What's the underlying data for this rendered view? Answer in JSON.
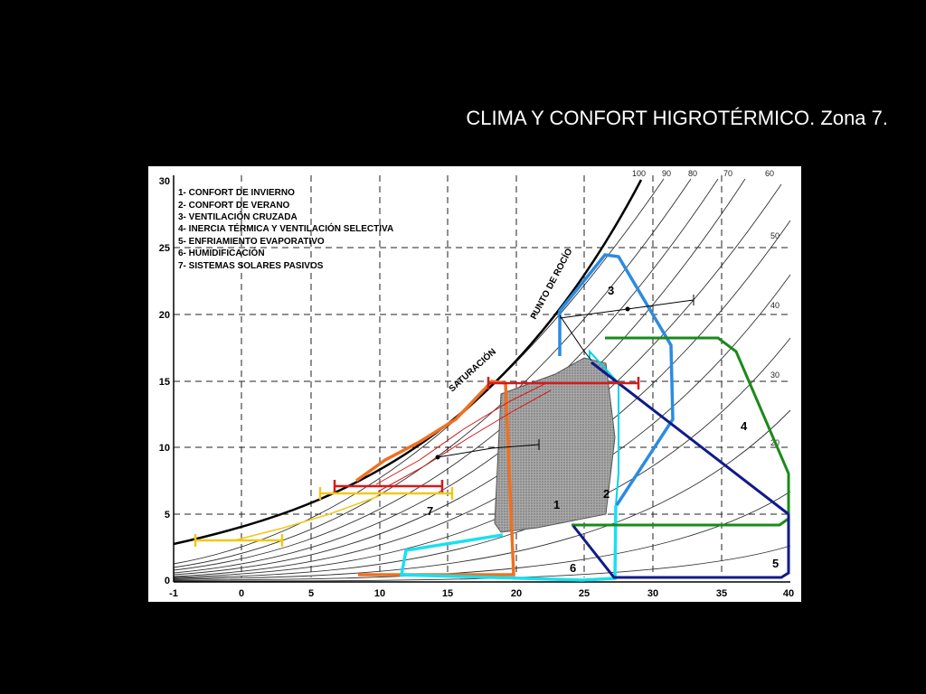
{
  "slide": {
    "title": "CLIMA Y CONFORT HIGROTÉRMICO. Zona 7."
  },
  "chart": {
    "legend": [
      "1- CONFORT DE INVIERNO",
      "2- CONFORT DE VERANO",
      "3- VENTILACIÓN CRUZADA",
      "4- INERCIA TÉRMICA Y VENTILACIÓN SELECTIVA",
      "5- ENFRIAMIENTO EVAPORATIVO",
      "6- HUMIDIFICACIÓN",
      "7- SISTEMAS SOLARES PASIVOS"
    ],
    "curve_labels": {
      "saturation": "SATURACIÓN",
      "dew_point": "PUNTO DE ROCÍO"
    },
    "x_ticks": [
      "-1",
      "0",
      "5",
      "10",
      "15",
      "20",
      "25",
      "30",
      "35",
      "40"
    ],
    "y_ticks": [
      "0",
      "5",
      "10",
      "15",
      "20",
      "25",
      "30"
    ],
    "rh_labels": [
      "100",
      "90",
      "80",
      "70",
      "60",
      "50",
      "40",
      "30",
      "20"
    ],
    "zone_numbers": [
      "1",
      "2",
      "3",
      "4",
      "5",
      "6",
      "7"
    ],
    "colors": {
      "zone1": "#8a8a8a",
      "zone2": "#00d4e8",
      "zone3": "#2a8ce0",
      "zone4": "#1a8a1a",
      "zone5": "#101a8a",
      "zone6": "#19e0f0",
      "zone7": "#f07020",
      "red": "#d81818",
      "yellow": "#f0c818"
    }
  }
}
